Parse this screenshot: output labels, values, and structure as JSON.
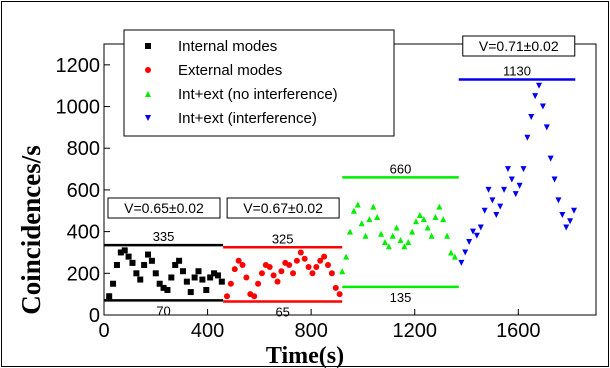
{
  "chart_data": {
    "type": "scatter",
    "xlabel": "Time(s)",
    "ylabel": "Coincidences/s",
    "xlim": [
      0,
      1900
    ],
    "ylim": [
      0,
      1300
    ],
    "xticks": [
      0,
      400,
      800,
      1200,
      1600
    ],
    "yticks": [
      0,
      200,
      400,
      600,
      800,
      1000,
      1200
    ],
    "legend_position": "top-left",
    "series": [
      {
        "name": "Internal modes",
        "color": "#000000",
        "marker": "square",
        "x": [
          20,
          35,
          50,
          65,
          80,
          95,
          110,
          125,
          140,
          155,
          170,
          185,
          200,
          215,
          230,
          245,
          260,
          275,
          290,
          305,
          320,
          335,
          350,
          365,
          380,
          395,
          410,
          425,
          440,
          455
        ],
        "y": [
          90,
          150,
          240,
          300,
          310,
          280,
          250,
          200,
          170,
          240,
          290,
          260,
          200,
          150,
          130,
          120,
          180,
          240,
          260,
          210,
          160,
          110,
          180,
          210,
          170,
          120,
          180,
          200,
          190,
          160
        ]
      },
      {
        "name": "External modes",
        "color": "#ff0000",
        "marker": "circle",
        "x": [
          475,
          490,
          505,
          520,
          535,
          550,
          565,
          580,
          595,
          610,
          625,
          640,
          655,
          670,
          685,
          700,
          715,
          730,
          745,
          760,
          775,
          790,
          805,
          820,
          835,
          850,
          865,
          880,
          895,
          910
        ],
        "y": [
          90,
          150,
          220,
          260,
          240,
          180,
          100,
          90,
          150,
          200,
          240,
          230,
          190,
          160,
          210,
          250,
          240,
          200,
          260,
          300,
          270,
          230,
          200,
          230,
          260,
          280,
          240,
          200,
          130,
          100
        ]
      },
      {
        "name": "Int+ext (no interference)",
        "color": "#00ee00",
        "marker": "triangle-up",
        "x": [
          920,
          935,
          950,
          965,
          980,
          995,
          1010,
          1025,
          1040,
          1055,
          1070,
          1085,
          1100,
          1115,
          1130,
          1145,
          1160,
          1175,
          1190,
          1205,
          1220,
          1235,
          1250,
          1265,
          1280,
          1295,
          1310,
          1325,
          1340,
          1355
        ],
        "y": [
          210,
          280,
          400,
          500,
          530,
          440,
          380,
          460,
          520,
          470,
          390,
          350,
          330,
          380,
          420,
          360,
          330,
          350,
          400,
          450,
          480,
          460,
          420,
          380,
          470,
          520,
          460,
          380,
          300,
          280
        ]
      },
      {
        "name": "Int+ext (interference)",
        "color": "#0000ee",
        "marker": "triangle-down",
        "x": [
          1380,
          1395,
          1410,
          1425,
          1440,
          1455,
          1470,
          1485,
          1500,
          1515,
          1530,
          1545,
          1560,
          1575,
          1590,
          1605,
          1620,
          1635,
          1650,
          1665,
          1680,
          1695,
          1710,
          1725,
          1740,
          1755,
          1770,
          1785,
          1800,
          1815
        ],
        "y": [
          250,
          300,
          350,
          400,
          380,
          420,
          500,
          600,
          550,
          480,
          520,
          600,
          700,
          650,
          580,
          620,
          700,
          850,
          950,
          1050,
          1100,
          1000,
          900,
          750,
          650,
          550,
          480,
          420,
          450,
          500
        ]
      }
    ],
    "bounds": [
      {
        "x_start": 0,
        "x_end": 460,
        "upper": 335,
        "lower": 70,
        "color": "#000000",
        "upper_label": "335",
        "lower_label": "70"
      },
      {
        "x_start": 460,
        "x_end": 920,
        "upper": 325,
        "lower": 65,
        "color": "#ff0000",
        "upper_label": "325",
        "lower_label": "65"
      },
      {
        "x_start": 920,
        "x_end": 1370,
        "upper": 660,
        "lower": 135,
        "color": "#00ee00",
        "upper_label": "660",
        "lower_label": "135"
      },
      {
        "x_start": 1370,
        "x_end": 1820,
        "upper": 1130,
        "lower": null,
        "color": "#0000ee",
        "upper_label": "1130",
        "lower_label": ""
      }
    ],
    "visibility_labels": [
      "V=0.65±0.02",
      "V=0.67±0.02",
      "V=0.71±0.02"
    ]
  }
}
